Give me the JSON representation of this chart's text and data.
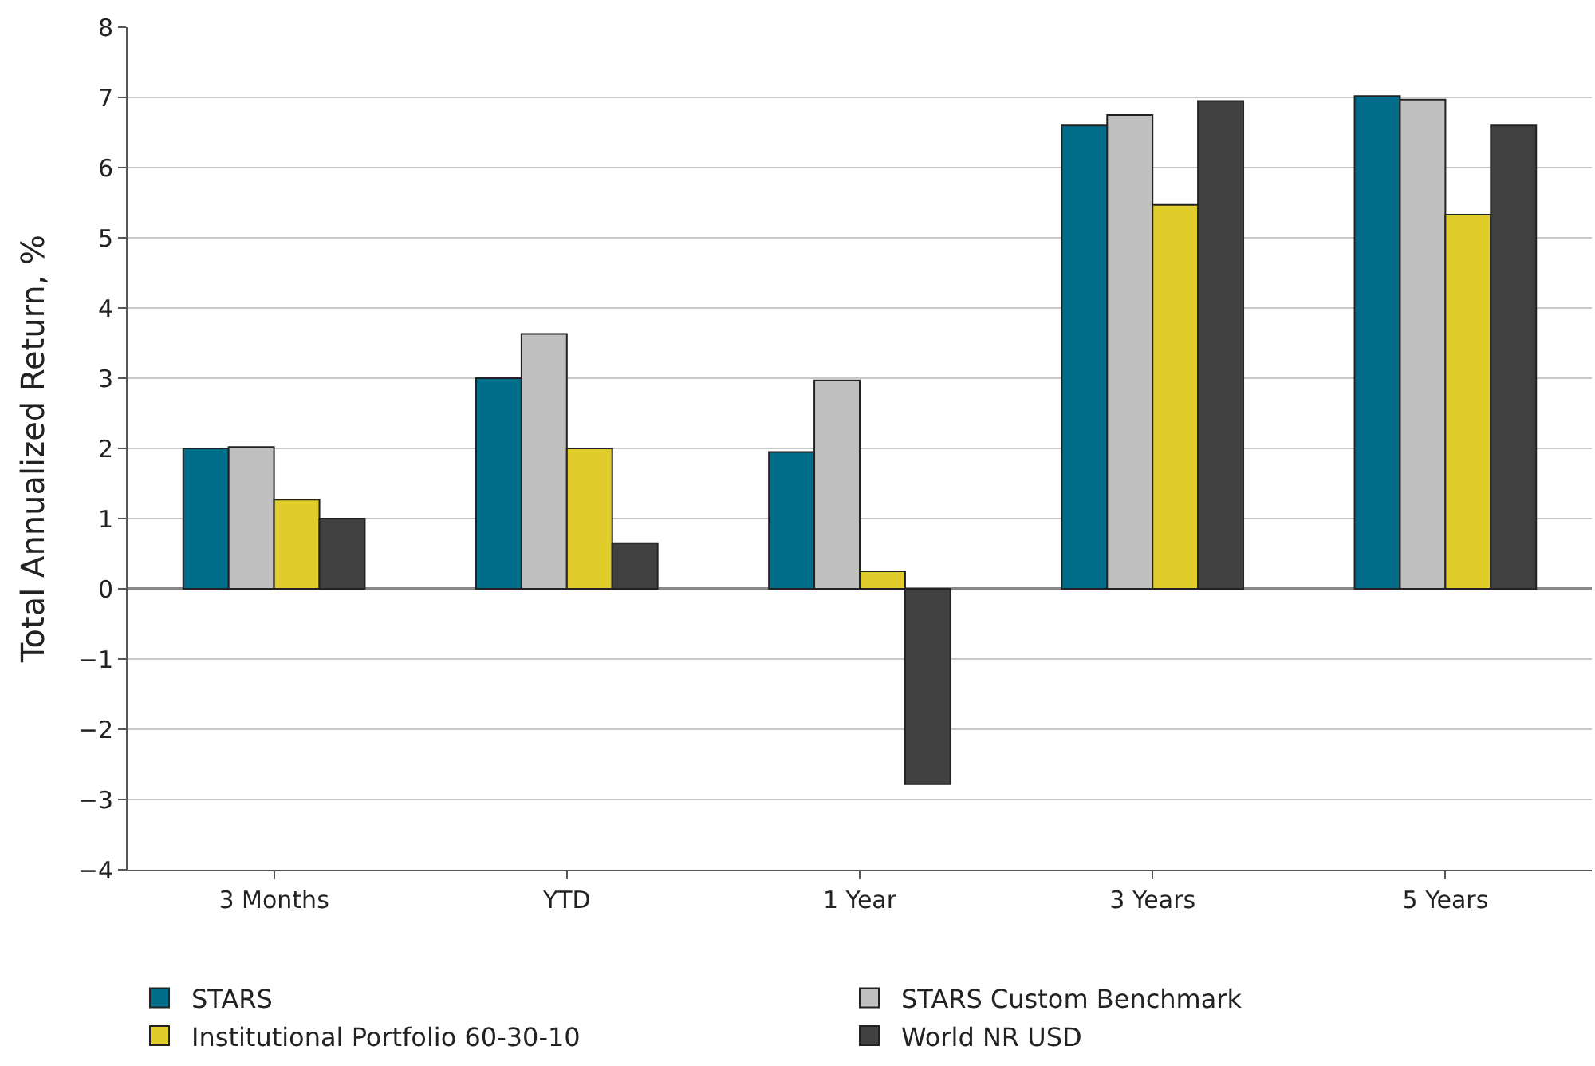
{
  "chart_data": {
    "type": "bar",
    "ylabel": "Total Annualized Return, %",
    "categories": [
      "3 Months",
      "YTD",
      "1 Year",
      "3 Years",
      "5 Years"
    ],
    "series": [
      {
        "name": "STARS",
        "color": "#006d8a",
        "values": [
          2.0,
          3.0,
          1.95,
          6.6,
          7.02
        ]
      },
      {
        "name": "STARS Custom Benchmark",
        "color": "#c0c0c0",
        "values": [
          2.02,
          3.63,
          2.97,
          6.75,
          6.97
        ]
      },
      {
        "name": "Institutional Portfolio 60-30-10",
        "color": "#e0cc2a",
        "values": [
          1.27,
          2.0,
          0.25,
          5.47,
          5.33
        ]
      },
      {
        "name": "World NR USD",
        "color": "#404040",
        "values": [
          1.0,
          0.65,
          -2.78,
          6.95,
          6.6
        ]
      }
    ],
    "ylim": [
      -4,
      8
    ],
    "yticks": [
      -4,
      -3,
      -2,
      -1,
      0,
      1,
      2,
      3,
      4,
      5,
      6,
      7,
      8
    ],
    "grid": "y",
    "legend": "bottom"
  }
}
